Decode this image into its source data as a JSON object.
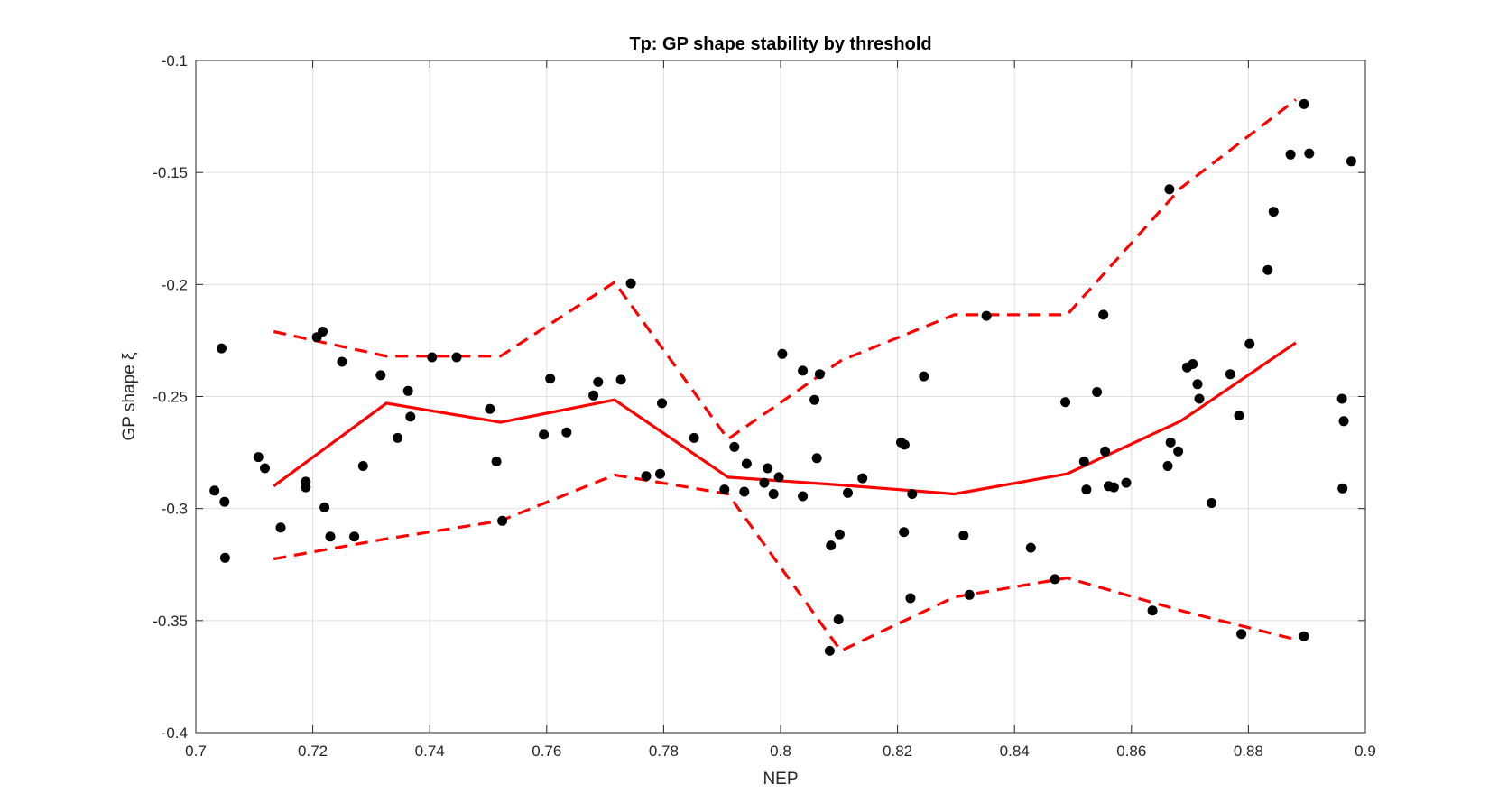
{
  "chart_data": {
    "type": "scatter",
    "title": "Tp: GP shape stability by threshold",
    "xlabel": "NEP",
    "ylabel": "GP shape ξ",
    "xlim": [
      0.7,
      0.9
    ],
    "ylim": [
      -0.4,
      -0.1
    ],
    "xticks": [
      0.7,
      0.72,
      0.74,
      0.76,
      0.78,
      0.8,
      0.82,
      0.84,
      0.86,
      0.88,
      0.9
    ],
    "yticks": [
      -0.4,
      -0.35,
      -0.3,
      -0.25,
      -0.2,
      -0.15,
      -0.1
    ],
    "xtick_labels": [
      "0.7",
      "0.72",
      "0.74",
      "0.76",
      "0.78",
      "0.8",
      "0.82",
      "0.84",
      "0.86",
      "0.88",
      "0.9"
    ],
    "ytick_labels": [
      "-0.4",
      "-0.35",
      "-0.3",
      "-0.25",
      "-0.2",
      "-0.15",
      "-0.1"
    ],
    "grid": true,
    "colors": {
      "points": "#000000",
      "lines": "#ff0000"
    },
    "points": [
      [
        0.7032,
        -0.292
      ],
      [
        0.7044,
        -0.2285
      ],
      [
        0.7049,
        -0.297
      ],
      [
        0.705,
        -0.322
      ],
      [
        0.7107,
        -0.277
      ],
      [
        0.7118,
        -0.282
      ],
      [
        0.7145,
        -0.3085
      ],
      [
        0.7188,
        -0.288
      ],
      [
        0.7188,
        -0.2905
      ],
      [
        0.7207,
        -0.2235
      ],
      [
        0.7217,
        -0.221
      ],
      [
        0.722,
        -0.2995
      ],
      [
        0.723,
        -0.3125
      ],
      [
        0.725,
        -0.2345
      ],
      [
        0.7271,
        -0.3125
      ],
      [
        0.7286,
        -0.281
      ],
      [
        0.7316,
        -0.2405
      ],
      [
        0.7345,
        -0.2685
      ],
      [
        0.7363,
        -0.2475
      ],
      [
        0.7367,
        -0.259
      ],
      [
        0.7404,
        -0.2325
      ],
      [
        0.7446,
        -0.2325
      ],
      [
        0.7503,
        -0.2555
      ],
      [
        0.7514,
        -0.279
      ],
      [
        0.7524,
        -0.3055
      ],
      [
        0.7595,
        -0.267
      ],
      [
        0.7606,
        -0.242
      ],
      [
        0.7634,
        -0.266
      ],
      [
        0.768,
        -0.2495
      ],
      [
        0.7688,
        -0.2435
      ],
      [
        0.7727,
        -0.2425
      ],
      [
        0.7744,
        -0.1995
      ],
      [
        0.777,
        -0.2855
      ],
      [
        0.7794,
        -0.2845
      ],
      [
        0.7797,
        -0.253
      ],
      [
        0.7852,
        -0.2685
      ],
      [
        0.7904,
        -0.2915
      ],
      [
        0.7921,
        -0.2725
      ],
      [
        0.7938,
        -0.2925
      ],
      [
        0.7942,
        -0.28
      ],
      [
        0.7972,
        -0.2885
      ],
      [
        0.7978,
        -0.282
      ],
      [
        0.7988,
        -0.2935
      ],
      [
        0.7997,
        -0.286
      ],
      [
        0.8003,
        -0.231
      ],
      [
        0.8038,
        -0.2385
      ],
      [
        0.8038,
        -0.2945
      ],
      [
        0.8058,
        -0.2515
      ],
      [
        0.8062,
        -0.2775
      ],
      [
        0.8067,
        -0.24
      ],
      [
        0.8086,
        -0.3165
      ],
      [
        0.8084,
        -0.3635
      ],
      [
        0.8099,
        -0.3495
      ],
      [
        0.8101,
        -0.3115
      ],
      [
        0.8115,
        -0.293
      ],
      [
        0.814,
        -0.2865
      ],
      [
        0.8206,
        -0.2705
      ],
      [
        0.8212,
        -0.2715
      ],
      [
        0.8211,
        -0.3105
      ],
      [
        0.8222,
        -0.34
      ],
      [
        0.8225,
        -0.2935
      ],
      [
        0.8245,
        -0.241
      ],
      [
        0.8313,
        -0.312
      ],
      [
        0.8323,
        -0.3385
      ],
      [
        0.8352,
        -0.214
      ],
      [
        0.8428,
        -0.3175
      ],
      [
        0.8469,
        -0.3315
      ],
      [
        0.8487,
        -0.2525
      ],
      [
        0.8519,
        -0.279
      ],
      [
        0.8523,
        -0.2915
      ],
      [
        0.8541,
        -0.248
      ],
      [
        0.8552,
        -0.2135
      ],
      [
        0.8555,
        -0.2745
      ],
      [
        0.8561,
        -0.29
      ],
      [
        0.857,
        -0.2905
      ],
      [
        0.8591,
        -0.2885
      ],
      [
        0.8636,
        -0.3455
      ],
      [
        0.8662,
        -0.281
      ],
      [
        0.8665,
        -0.1575
      ],
      [
        0.8667,
        -0.2705
      ],
      [
        0.868,
        -0.2745
      ],
      [
        0.8695,
        -0.237
      ],
      [
        0.8705,
        -0.2355
      ],
      [
        0.8713,
        -0.2445
      ],
      [
        0.8716,
        -0.251
      ],
      [
        0.8737,
        -0.2975
      ],
      [
        0.8769,
        -0.24
      ],
      [
        0.8784,
        -0.2585
      ],
      [
        0.8788,
        -0.356
      ],
      [
        0.8802,
        -0.2265
      ],
      [
        0.8833,
        -0.1935
      ],
      [
        0.8843,
        -0.1675
      ],
      [
        0.8872,
        -0.142
      ],
      [
        0.8895,
        -0.357
      ],
      [
        0.8895,
        -0.1195
      ],
      [
        0.8904,
        -0.1415
      ],
      [
        0.896,
        -0.251
      ],
      [
        0.8961,
        -0.291
      ],
      [
        0.8963,
        -0.261
      ],
      [
        0.8976,
        -0.145
      ]
    ],
    "series": [
      {
        "style": "solid",
        "x": [
          0.7133,
          0.7326,
          0.7521,
          0.7716,
          0.791,
          0.8103,
          0.8297,
          0.849,
          0.8684,
          0.8881
        ],
        "y": [
          -0.29,
          -0.253,
          -0.2615,
          -0.2515,
          -0.286,
          -0.2895,
          -0.2935,
          -0.2845,
          -0.261,
          -0.226
        ]
      },
      {
        "style": "dashed",
        "x": [
          0.7133,
          0.7326,
          0.7521,
          0.7716,
          0.791,
          0.8103,
          0.8297,
          0.849,
          0.8684,
          0.8881
        ],
        "y": [
          -0.221,
          -0.232,
          -0.232,
          -0.199,
          -0.269,
          -0.234,
          -0.2135,
          -0.2135,
          -0.157,
          -0.1175
        ]
      },
      {
        "style": "dashed",
        "x": [
          0.7133,
          0.7326,
          0.7521,
          0.7716,
          0.791,
          0.8103,
          0.8297,
          0.849,
          0.8684,
          0.8881
        ],
        "y": [
          -0.3225,
          -0.3135,
          -0.3055,
          -0.285,
          -0.2935,
          -0.3635,
          -0.3395,
          -0.331,
          -0.3455,
          -0.3585
        ]
      }
    ]
  }
}
